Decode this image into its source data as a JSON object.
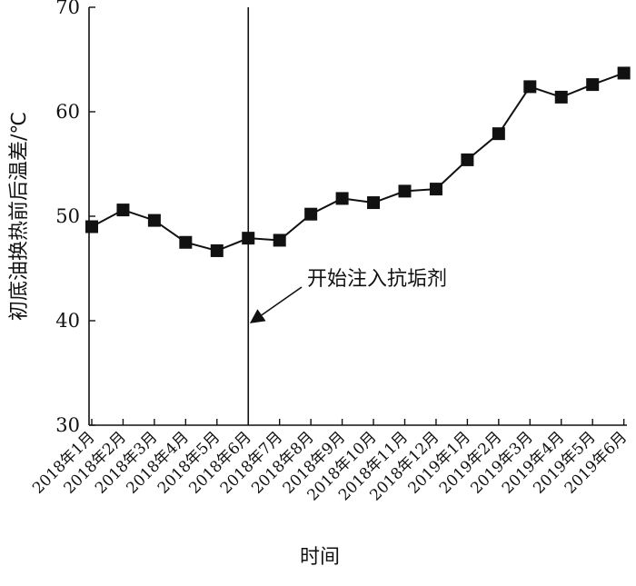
{
  "chart_data": {
    "type": "line",
    "title": "",
    "xlabel": "时间",
    "ylabel": "初底油换热前后温差/℃",
    "ylim": [
      30,
      70
    ],
    "yticks": [
      30,
      40,
      50,
      60,
      70
    ],
    "categories": [
      "2018年1月",
      "2018年2月",
      "2018年3月",
      "2018年4月",
      "2018年5月",
      "2018年6月",
      "2018年7月",
      "2018年8月",
      "2018年9月",
      "2018年10月",
      "2018年11月",
      "2018年12月",
      "2019年1月",
      "2019年2月",
      "2019年3月",
      "2019年4月",
      "2019年5月",
      "2019年6月"
    ],
    "series": [
      {
        "values": [
          49.0,
          50.6,
          49.6,
          47.5,
          46.7,
          47.9,
          47.7,
          50.2,
          51.7,
          51.3,
          52.4,
          52.6,
          55.4,
          57.9,
          62.4,
          61.4,
          62.6,
          63.7
        ]
      }
    ],
    "grid": false,
    "annotation": {
      "text": "开始注入抗垢剂",
      "category": "2018年6月"
    },
    "colors": {
      "line": "#111111",
      "marker": "#111111"
    }
  }
}
